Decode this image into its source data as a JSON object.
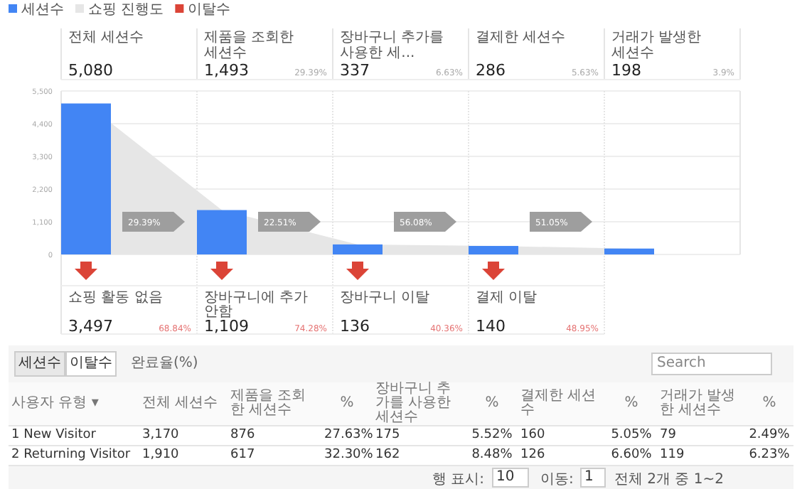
{
  "chart_data": [
    {
      "type": "bar",
      "categories": [
        "전체 세션수",
        "제품을 조회한 세션수",
        "장바구니 추가를 사용한 세...",
        "결제한 세션수",
        "거래가 발생한 세션수"
      ],
      "series": [
        {
          "name": "세션수",
          "color": "#4285f4",
          "values": [
            5080,
            1493,
            337,
            286,
            198
          ]
        },
        {
          "name": "쇼핑 진행도",
          "type": "area",
          "color": "#e6e6e6",
          "values": [
            5080,
            1493,
            337,
            286,
            198
          ]
        }
      ],
      "ylim": [
        0,
        5500
      ],
      "yticks": [
        0,
        {
          "value": 1100,
          "label": "1,100"
        },
        {
          "value": 2200,
          "label": "2,200"
        },
        {
          "value": 3300,
          "label": "3,300"
        },
        {
          "value": 4400,
          "label": "4,400"
        },
        {
          "value": 5500,
          "label": "5,500"
        }
      ],
      "grid": "y",
      "legend": "top left",
      "annotations": [
        "29.39%",
        "22.51%",
        "56.08%",
        "51.05%",
        "29.39%",
        "6.63%",
        "5.63%",
        "3.9%",
        "쇼핑 활동 없음",
        "장바구니에 추가 안함",
        "장바구니 이탈",
        "결제 이탈",
        "68.84%",
        "74.28%",
        "40.36%",
        "48.95%",
        "3,497",
        "1,109",
        "136",
        "140",
        "5,080",
        "1,493",
        "337",
        "286",
        "198",
        "이탈수"
      ]
    },
    {
      "type": "other",
      "categories": [
        "전체 세션수",
        "제품을 조회한 세션수",
        "%",
        "장바구니 추가를 사용한 세션수",
        "%",
        "결제한 세션수",
        "%",
        "거래가 발생한 세션수",
        "%"
      ],
      "series": [
        {
          "name": "1 New Visitor",
          "color": "#ffffff",
          "values": [
            3170,
            876,
            27.63,
            175,
            5.52,
            160,
            5.05,
            79,
            2.49
          ],
          "value_labels": [
            "3,170",
            "876",
            "27.63%",
            "175",
            "5.52%",
            "160",
            "5.05%",
            "79",
            "2.49%"
          ]
        },
        {
          "name": "2 Returning Visitor",
          "color": "#ffffff",
          "values": [
            1910,
            617,
            32.3,
            162,
            8.48,
            126,
            6.6,
            119,
            6.23
          ],
          "value_labels": [
            "1,910",
            "617",
            "32.30%",
            "162",
            "8.48%",
            "126",
            "6.60%",
            "119",
            "6.23%"
          ]
        }
      ],
      "annotations": [
        "세션수",
        "이탈수",
        "완료율(%)",
        "Search",
        "사용자 유형 ▾",
        "행 표시:",
        "10",
        "이동:",
        "1",
        "전체 2개 중 1~2"
      ]
    }
  ]
}
